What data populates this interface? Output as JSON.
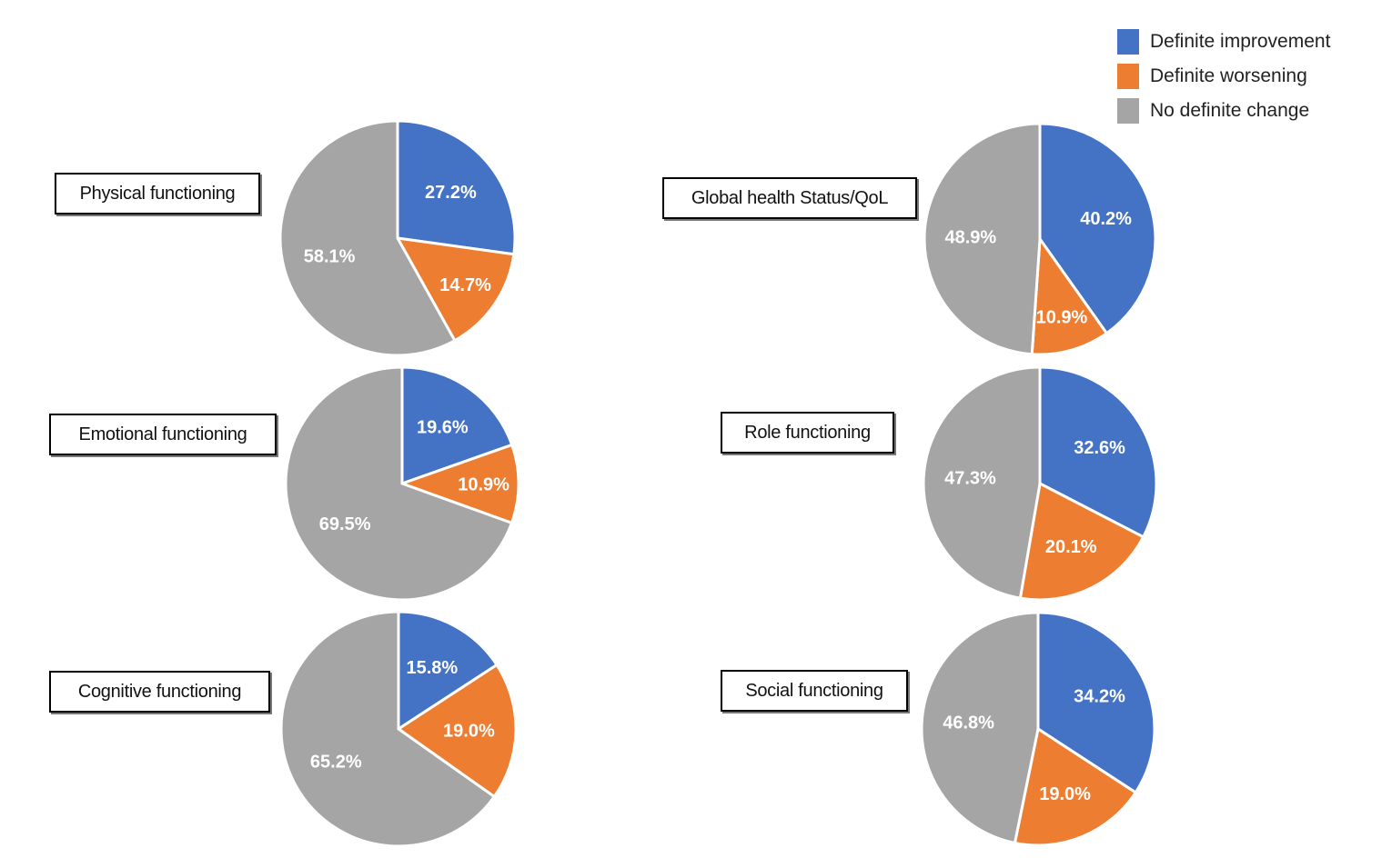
{
  "chart_data": {
    "type": "pie",
    "colors": {
      "Definite improvement": "#4472C4",
      "Definite worsening": "#ED7D31",
      "No definite change": "#A5A5A5"
    },
    "legend": {
      "placement": "top-right",
      "entries": [
        "Definite improvement",
        "Definite worsening",
        "No definite change"
      ]
    },
    "charts": [
      {
        "title": "Physical functioning",
        "values": [
          27.2,
          14.7,
          58.1
        ],
        "labels": [
          "27.2%",
          "14.7%",
          "58.1%"
        ]
      },
      {
        "title": "Emotional functioning",
        "values": [
          19.6,
          10.9,
          69.5
        ],
        "labels": [
          "19.6%",
          "10.9%",
          "69.5%"
        ]
      },
      {
        "title": "Cognitive functioning",
        "values": [
          15.8,
          19.0,
          65.2
        ],
        "labels": [
          "15.8%",
          "19.0%",
          "65.2%"
        ]
      },
      {
        "title": "Global health Status/QoL",
        "values": [
          40.2,
          10.9,
          48.9
        ],
        "labels": [
          "40.2%",
          "10.9%",
          "48.9%"
        ]
      },
      {
        "title": "Role functioning",
        "values": [
          32.6,
          20.1,
          47.3
        ],
        "labels": [
          "32.6%",
          "20.1%",
          "47.3%"
        ]
      },
      {
        "title": "Social functioning",
        "values": [
          34.2,
          19.0,
          46.8
        ],
        "labels": [
          "34.2%",
          "19.0%",
          "46.8%"
        ]
      }
    ]
  }
}
